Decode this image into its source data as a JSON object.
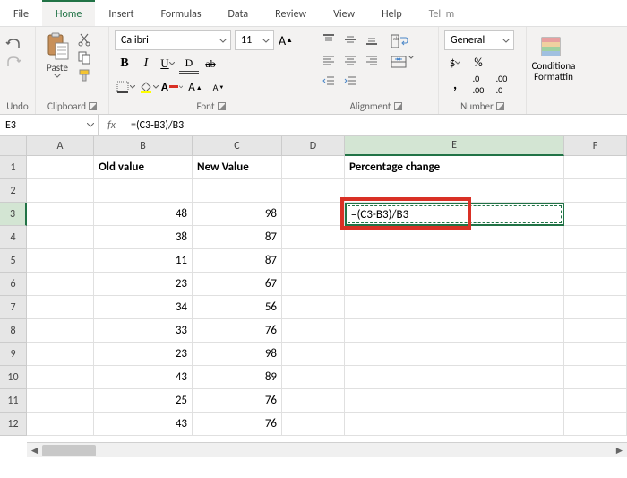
{
  "menu": {
    "tabs": [
      "File",
      "Home",
      "Insert",
      "Formulas",
      "Data",
      "Review",
      "View",
      "Help",
      "Tell m"
    ],
    "active": 1
  },
  "ribbon": {
    "undo_label": "Undo",
    "clipboard_label": "Clipboard",
    "paste_label": "Paste",
    "font_label": "Font",
    "font_name": "Calibri",
    "font_size": "11",
    "alignment_label": "Alignment",
    "number_label": "Number",
    "number_format": "General",
    "conditional_label": "Conditiona\nFormattin"
  },
  "formula_bar": {
    "cell_ref": "E3",
    "fx": "fx",
    "formula": "=(C3-B3)/B3"
  },
  "grid": {
    "columns": [
      "A",
      "B",
      "C",
      "D",
      "E",
      "F"
    ],
    "headers": {
      "B": "Old value",
      "C": "New Value",
      "E": "Percentage change"
    },
    "rows": [
      {
        "n": 1,
        "B": "",
        "C": ""
      },
      {
        "n": 2,
        "B": "",
        "C": ""
      },
      {
        "n": 3,
        "B": "48",
        "C": "98",
        "E": "=(C3-B3)/B3"
      },
      {
        "n": 4,
        "B": "38",
        "C": "87"
      },
      {
        "n": 5,
        "B": "11",
        "C": "87"
      },
      {
        "n": 6,
        "B": "23",
        "C": "67"
      },
      {
        "n": 7,
        "B": "34",
        "C": "56"
      },
      {
        "n": 8,
        "B": "33",
        "C": "76"
      },
      {
        "n": 9,
        "B": "23",
        "C": "98"
      },
      {
        "n": 10,
        "B": "43",
        "C": "89"
      },
      {
        "n": 11,
        "B": "25",
        "C": "76"
      },
      {
        "n": 12,
        "B": "43",
        "C": "76"
      }
    ],
    "active_cell": "E3"
  },
  "colors": {
    "accent": "#217346",
    "highlight": "#d93025",
    "ribbon_bg": "#f3f2f1",
    "header_bg": "#e6e6e6"
  }
}
